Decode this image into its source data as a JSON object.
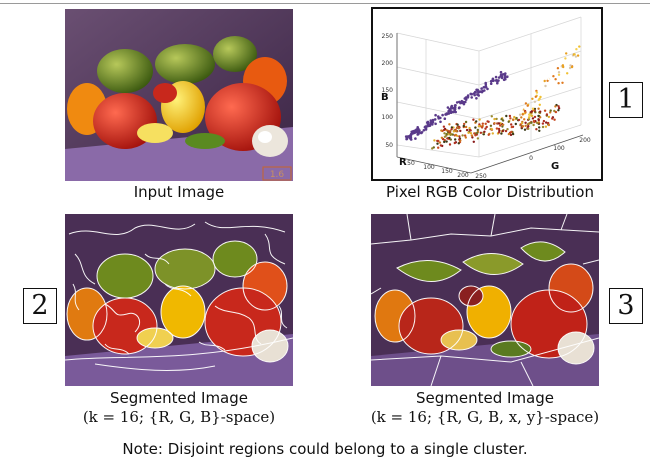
{
  "captions": {
    "input_image": "Input Image",
    "distribution": "Pixel RGB Color Distribution",
    "seg_rgb_line1": "Segmented Image",
    "seg_rgb_line2": "(k = 16; {R, G, B}-space)",
    "seg_rgbxy_line1": "Segmented Image",
    "seg_rgbxy_line2": "(k = 16; {R, G, B, x, y}-space)"
  },
  "badges": {
    "one": "1",
    "two": "2",
    "three": "3"
  },
  "input_image_label": "1.6",
  "scatter": {
    "axis_b_label": "B",
    "axis_r_label": "R",
    "axis_g_label": "G",
    "b_ticks": [
      "50",
      "100",
      "150",
      "200",
      "250"
    ],
    "r_ticks": [
      "50",
      "100",
      "150",
      "200",
      "250"
    ],
    "g_ticks": [
      "0",
      "100",
      "200"
    ]
  },
  "note": "Note: Disjoint regions could belong to a single cluster.",
  "colors": {
    "background_purple": "#4a2f55",
    "red_pepper": "#c8281c",
    "yellow_pepper": "#f0b800",
    "green_pepper": "#6e8a1e",
    "garlic": "#e8e0d4",
    "table_purple": "#7a5a9a"
  }
}
